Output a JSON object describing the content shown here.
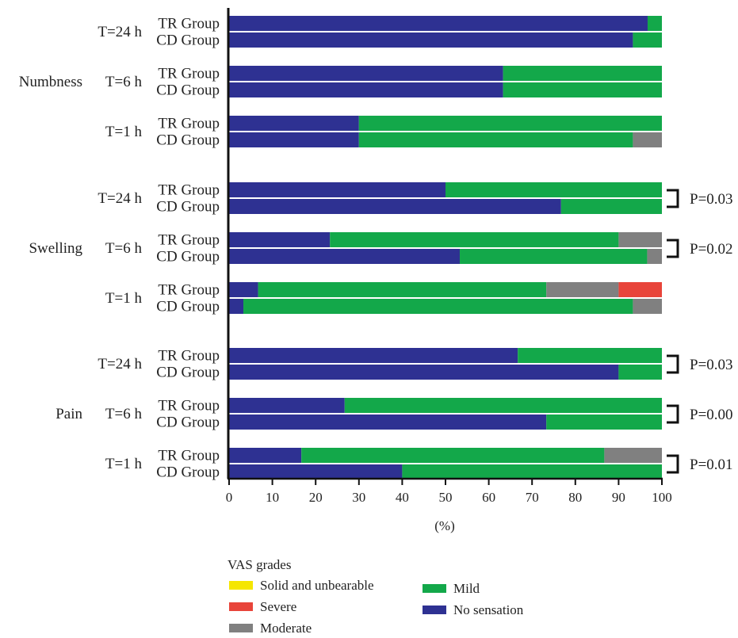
{
  "chart_data": {
    "type": "bar",
    "orientation": "horizontal",
    "stacked": true,
    "xlabel": "(%)",
    "xlim": [
      0,
      100
    ],
    "xticks": [
      0,
      10,
      20,
      30,
      40,
      50,
      60,
      70,
      80,
      90,
      100
    ],
    "grid": false,
    "legend": {
      "title": "VAS grades",
      "position": "bottom",
      "entries": [
        {
          "name": "Solid and unbearable",
          "color": "#f5e600"
        },
        {
          "name": "Severe",
          "color": "#e8443a"
        },
        {
          "name": "Moderate",
          "color": "#808080"
        },
        {
          "name": "Mild",
          "color": "#13a84a"
        },
        {
          "name": "No sensation",
          "color": "#2e3192"
        }
      ]
    },
    "stack_order": [
      "No sensation",
      "Mild",
      "Moderate",
      "Severe",
      "Solid and unbearable"
    ],
    "colors": {
      "No sensation": "#2e3192",
      "Mild": "#13a84a",
      "Moderate": "#808080",
      "Severe": "#e8443a",
      "Solid and unbearable": "#f5e600"
    },
    "sections": [
      {
        "name": "Numbness",
        "timepoints": [
          {
            "label": "T=24 h",
            "p": "",
            "rows": [
              {
                "group": "TR Group",
                "values": {
                  "No sensation": 96.7,
                  "Mild": 3.3,
                  "Moderate": 0,
                  "Severe": 0,
                  "Solid and unbearable": 0
                }
              },
              {
                "group": "CD Group",
                "values": {
                  "No sensation": 93.3,
                  "Mild": 6.7,
                  "Moderate": 0,
                  "Severe": 0,
                  "Solid and unbearable": 0
                }
              }
            ]
          },
          {
            "label": "T=6 h",
            "p": "",
            "rows": [
              {
                "group": "TR Group",
                "values": {
                  "No sensation": 63.3,
                  "Mild": 36.7,
                  "Moderate": 0,
                  "Severe": 0,
                  "Solid and unbearable": 0
                }
              },
              {
                "group": "CD Group",
                "values": {
                  "No sensation": 63.3,
                  "Mild": 36.7,
                  "Moderate": 0,
                  "Severe": 0,
                  "Solid and unbearable": 0
                }
              }
            ]
          },
          {
            "label": "T=1 h",
            "p": "",
            "rows": [
              {
                "group": "TR Group",
                "values": {
                  "No sensation": 30,
                  "Mild": 70,
                  "Moderate": 0,
                  "Severe": 0,
                  "Solid and unbearable": 0
                }
              },
              {
                "group": "CD Group",
                "values": {
                  "No sensation": 30,
                  "Mild": 63.3,
                  "Moderate": 6.7,
                  "Severe": 0,
                  "Solid and unbearable": 0
                }
              }
            ]
          }
        ]
      },
      {
        "name": "Swelling",
        "timepoints": [
          {
            "label": "T=24 h",
            "p": "P=0.03",
            "rows": [
              {
                "group": "TR Group",
                "values": {
                  "No sensation": 50,
                  "Mild": 50,
                  "Moderate": 0,
                  "Severe": 0,
                  "Solid and unbearable": 0
                }
              },
              {
                "group": "CD Group",
                "values": {
                  "No sensation": 76.7,
                  "Mild": 23.3,
                  "Moderate": 0,
                  "Severe": 0,
                  "Solid and unbearable": 0
                }
              }
            ]
          },
          {
            "label": "T=6 h",
            "p": "P=0.02",
            "rows": [
              {
                "group": "TR Group",
                "values": {
                  "No sensation": 23.3,
                  "Mild": 66.7,
                  "Moderate": 10,
                  "Severe": 0,
                  "Solid and unbearable": 0
                }
              },
              {
                "group": "CD Group",
                "values": {
                  "No sensation": 53.3,
                  "Mild": 43.3,
                  "Moderate": 3.4,
                  "Severe": 0,
                  "Solid and unbearable": 0
                }
              }
            ]
          },
          {
            "label": "T=1 h",
            "p": "",
            "rows": [
              {
                "group": "TR Group",
                "values": {
                  "No sensation": 6.7,
                  "Mild": 66.6,
                  "Moderate": 16.7,
                  "Severe": 10,
                  "Solid and unbearable": 0
                }
              },
              {
                "group": "CD Group",
                "values": {
                  "No sensation": 3.3,
                  "Mild": 90,
                  "Moderate": 6.7,
                  "Severe": 0,
                  "Solid and unbearable": 0
                }
              }
            ]
          }
        ]
      },
      {
        "name": "Pain",
        "timepoints": [
          {
            "label": "T=24 h",
            "p": "P=0.03",
            "rows": [
              {
                "group": "TR Group",
                "values": {
                  "No sensation": 66.7,
                  "Mild": 33.3,
                  "Moderate": 0,
                  "Severe": 0,
                  "Solid and unbearable": 0
                }
              },
              {
                "group": "CD Group",
                "values": {
                  "No sensation": 90,
                  "Mild": 10,
                  "Moderate": 0,
                  "Severe": 0,
                  "Solid and unbearable": 0
                }
              }
            ]
          },
          {
            "label": "T=6 h",
            "p": "P=0.00",
            "rows": [
              {
                "group": "TR Group",
                "values": {
                  "No sensation": 26.7,
                  "Mild": 73.3,
                  "Moderate": 0,
                  "Severe": 0,
                  "Solid and unbearable": 0
                }
              },
              {
                "group": "CD Group",
                "values": {
                  "No sensation": 73.3,
                  "Mild": 26.7,
                  "Moderate": 0,
                  "Severe": 0,
                  "Solid and unbearable": 0
                }
              }
            ]
          },
          {
            "label": "T=1 h",
            "p": "P=0.01",
            "rows": [
              {
                "group": "TR Group",
                "values": {
                  "No sensation": 16.7,
                  "Mild": 70,
                  "Moderate": 13.3,
                  "Severe": 0,
                  "Solid and unbearable": 0
                }
              },
              {
                "group": "CD Group",
                "values": {
                  "No sensation": 40,
                  "Mild": 60,
                  "Moderate": 0,
                  "Severe": 0,
                  "Solid and unbearable": 0
                }
              }
            ]
          }
        ]
      }
    ]
  }
}
